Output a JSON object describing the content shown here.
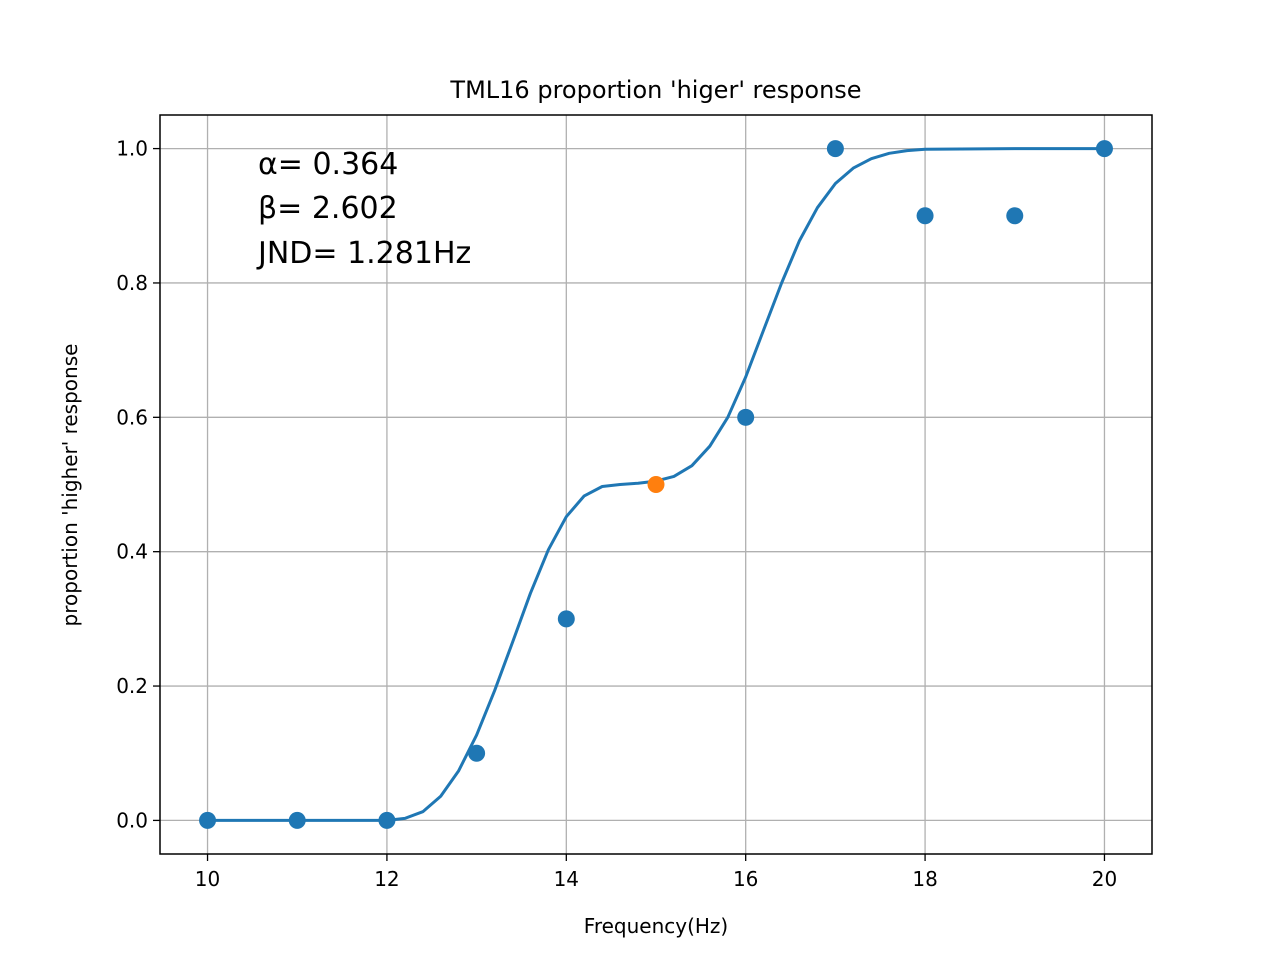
{
  "chart_data": {
    "type": "scatter",
    "title": "TML16 proportion 'higer' response",
    "xlabel": "Frequency(Hz)",
    "ylabel": "proportion 'higher' response",
    "xlim": [
      9.47,
      20.53
    ],
    "ylim": [
      -0.05,
      1.05
    ],
    "xticks": [
      10,
      12,
      14,
      16,
      18,
      20
    ],
    "xtick_labels": [
      "10",
      "12",
      "14",
      "16",
      "18",
      "20"
    ],
    "yticks": [
      0.0,
      0.2,
      0.4,
      0.6,
      0.8,
      1.0
    ],
    "ytick_labels": [
      "0.0",
      "0.2",
      "0.4",
      "0.6",
      "0.8",
      "1.0"
    ],
    "grid": true,
    "colors": {
      "series": "#1f77b4",
      "highlight": "#ff7f0e",
      "grid": "#b0b0b0"
    },
    "points": {
      "x": [
        10,
        11,
        12,
        13,
        14,
        16,
        17,
        18,
        19,
        20
      ],
      "y": [
        0.0,
        0.0,
        0.0,
        0.1,
        0.3,
        0.6,
        1.0,
        0.9,
        0.9,
        1.0
      ]
    },
    "highlight_point": {
      "x": 15,
      "y": 0.5
    },
    "fit_curve": {
      "x": [
        10,
        11,
        12,
        12.2,
        12.4,
        12.6,
        12.8,
        13.0,
        13.2,
        13.4,
        13.6,
        13.8,
        14.0,
        14.2,
        14.4,
        14.6,
        14.8,
        15.0,
        15.2,
        15.4,
        15.6,
        15.8,
        16.0,
        16.2,
        16.4,
        16.6,
        16.8,
        17.0,
        17.2,
        17.4,
        17.6,
        17.8,
        18.0,
        19.0,
        20.0
      ],
      "y": [
        0.0,
        0.0,
        0.0,
        0.003,
        0.013,
        0.036,
        0.074,
        0.127,
        0.193,
        0.265,
        0.338,
        0.403,
        0.452,
        0.483,
        0.497,
        0.5,
        0.502,
        0.505,
        0.512,
        0.528,
        0.557,
        0.6,
        0.66,
        0.73,
        0.8,
        0.863,
        0.912,
        0.948,
        0.971,
        0.985,
        0.993,
        0.997,
        0.999,
        1.0,
        1.0
      ]
    },
    "annotations": [
      "α= 0.364",
      "β= 2.602",
      "JND= 1.281Hz"
    ]
  }
}
